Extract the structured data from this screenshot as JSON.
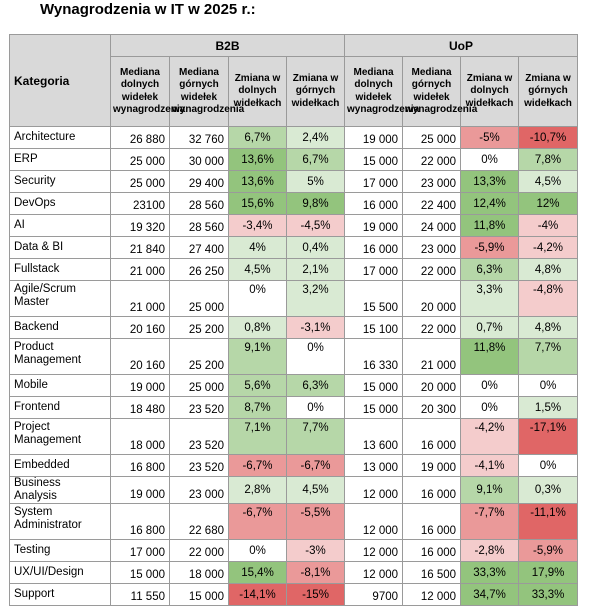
{
  "title": "Wynagrodzenia w IT w 2025 r.:",
  "header": {
    "category": "Kategoria",
    "group_b2b": "B2B",
    "group_uop": "UoP",
    "col_low": "Mediana dolnych widełek wynagrodzenia",
    "col_high": "Mediana górnych widełek wynagrodzenia",
    "col_change_low": "Zmiana w dolnych widełkach",
    "col_change_high": "Zmiana w górnych widełkach"
  },
  "colors": {
    "header_bg": "#d9d9d9",
    "border": "#9a9a9a",
    "green_strong": "#93c47d",
    "green_mid": "#b6d7a8",
    "green_light": "#d9ead3",
    "red_strong": "#e06666",
    "red_mid": "#ea9999",
    "red_light": "#f4cccc",
    "neutral": "#ffffff"
  },
  "rows": [
    {
      "cat": "Architecture",
      "b2b_low": "26 880",
      "b2b_high": "32 760",
      "b2b_ch_low": "6,7%",
      "b2b_ch_high": "2,4%",
      "uop_low": "19 000",
      "uop_high": "25 000",
      "uop_ch_low": "-5%",
      "uop_ch_high": "-10,7%"
    },
    {
      "cat": "ERP",
      "b2b_low": "25 000",
      "b2b_high": "30 000",
      "b2b_ch_low": "13,6%",
      "b2b_ch_high": "6,7%",
      "uop_low": "15 000",
      "uop_high": "22 000",
      "uop_ch_low": "0%",
      "uop_ch_high": "7,8%"
    },
    {
      "cat": "Security",
      "b2b_low": "25 000",
      "b2b_high": "29 400",
      "b2b_ch_low": "13,6%",
      "b2b_ch_high": "5%",
      "uop_low": "17 000",
      "uop_high": "23 000",
      "uop_ch_low": "13,3%",
      "uop_ch_high": "4,5%"
    },
    {
      "cat": "DevOps",
      "b2b_low": "23100",
      "b2b_high": "28 560",
      "b2b_ch_low": "15,6%",
      "b2b_ch_high": "9,8%",
      "uop_low": "16 000",
      "uop_high": "22 400",
      "uop_ch_low": "12,4%",
      "uop_ch_high": "12%"
    },
    {
      "cat": "AI",
      "b2b_low": "19 320",
      "b2b_high": "28 560",
      "b2b_ch_low": "-3,4%",
      "b2b_ch_high": "-4,5%",
      "uop_low": "19 000",
      "uop_high": "24 000",
      "uop_ch_low": "11,8%",
      "uop_ch_high": "-4%"
    },
    {
      "cat": "Data & BI",
      "b2b_low": "21 840",
      "b2b_high": "27 400",
      "b2b_ch_low": "4%",
      "b2b_ch_high": "0,4%",
      "uop_low": "16 000",
      "uop_high": "23 000",
      "uop_ch_low": "-5,9%",
      "uop_ch_high": "-4,2%"
    },
    {
      "cat": "Fullstack",
      "b2b_low": "21 000",
      "b2b_high": "26 250",
      "b2b_ch_low": "4,5%",
      "b2b_ch_high": "2,1%",
      "uop_low": "17 000",
      "uop_high": "22 000",
      "uop_ch_low": "6,3%",
      "uop_ch_high": "4,8%"
    },
    {
      "cat": "Agile/Scrum Master",
      "b2b_low": "21 000",
      "b2b_high": "25 000",
      "b2b_ch_low": "0%",
      "b2b_ch_high": "3,2%",
      "uop_low": "15 500",
      "uop_high": "20 000",
      "uop_ch_low": "3,3%",
      "uop_ch_high": "-4,8%"
    },
    {
      "cat": "Backend",
      "b2b_low": "20 160",
      "b2b_high": "25 200",
      "b2b_ch_low": "0,8%",
      "b2b_ch_high": "-3,1%",
      "uop_low": "15 100",
      "uop_high": "22 000",
      "uop_ch_low": "0,7%",
      "uop_ch_high": "4,8%"
    },
    {
      "cat": "Product Management",
      "b2b_low": "20 160",
      "b2b_high": "25 200",
      "b2b_ch_low": "9,1%",
      "b2b_ch_high": "0%",
      "uop_low": "16 330",
      "uop_high": "21 000",
      "uop_ch_low": "11,8%",
      "uop_ch_high": "7,7%"
    },
    {
      "cat": "Mobile",
      "b2b_low": "19 000",
      "b2b_high": "25 000",
      "b2b_ch_low": "5,6%",
      "b2b_ch_high": "6,3%",
      "uop_low": "15 000",
      "uop_high": "20 000",
      "uop_ch_low": "0%",
      "uop_ch_high": "0%"
    },
    {
      "cat": "Frontend",
      "b2b_low": "18 480",
      "b2b_high": "23 520",
      "b2b_ch_low": "8,7%",
      "b2b_ch_high": "0%",
      "uop_low": "15 000",
      "uop_high": "20 300",
      "uop_ch_low": "0%",
      "uop_ch_high": "1,5%"
    },
    {
      "cat": "Project Management",
      "b2b_low": "18 000",
      "b2b_high": "23 520",
      "b2b_ch_low": "7,1%",
      "b2b_ch_high": "7,7%",
      "uop_low": "13 600",
      "uop_high": "16 000",
      "uop_ch_low": "-4,2%",
      "uop_ch_high": "-17,1%"
    },
    {
      "cat": "Embedded",
      "b2b_low": "16 800",
      "b2b_high": "23 520",
      "b2b_ch_low": "-6,7%",
      "b2b_ch_high": "-6,7%",
      "uop_low": "13 000",
      "uop_high": "19 000",
      "uop_ch_low": "-4,1%",
      "uop_ch_high": "0%"
    },
    {
      "cat": "Business Analysis",
      "b2b_low": "19 000",
      "b2b_high": "23 000",
      "b2b_ch_low": "2,8%",
      "b2b_ch_high": "4,5%",
      "uop_low": "12 000",
      "uop_high": "16 000",
      "uop_ch_low": "9,1%",
      "uop_ch_high": "0,3%"
    },
    {
      "cat": "System Administrator",
      "b2b_low": "16 800",
      "b2b_high": "22 680",
      "b2b_ch_low": "-6,7%",
      "b2b_ch_high": "-5,5%",
      "uop_low": "12 000",
      "uop_high": "16 000",
      "uop_ch_low": "-7,7%",
      "uop_ch_high": "-11,1%"
    },
    {
      "cat": "Testing",
      "b2b_low": "17 000",
      "b2b_high": "22 000",
      "b2b_ch_low": "0%",
      "b2b_ch_high": "-3%",
      "uop_low": "12 000",
      "uop_high": "16 000",
      "uop_ch_low": "-2,8%",
      "uop_ch_high": "-5,9%"
    },
    {
      "cat": "UX/UI/Design",
      "b2b_low": "15 000",
      "b2b_high": "18 000",
      "b2b_ch_low": "15,4%",
      "b2b_ch_high": "-8,1%",
      "uop_low": "12 000",
      "uop_high": "16 500",
      "uop_ch_low": "33,3%",
      "uop_ch_high": "17,9%"
    },
    {
      "cat": "Support",
      "b2b_low": "11 550",
      "b2b_high": "15 000",
      "b2b_ch_low": "-14,1%",
      "b2b_ch_high": "-15%",
      "uop_low": "9700",
      "uop_high": "12 000",
      "uop_ch_low": "34,7%",
      "uop_ch_high": "33,3%"
    }
  ]
}
